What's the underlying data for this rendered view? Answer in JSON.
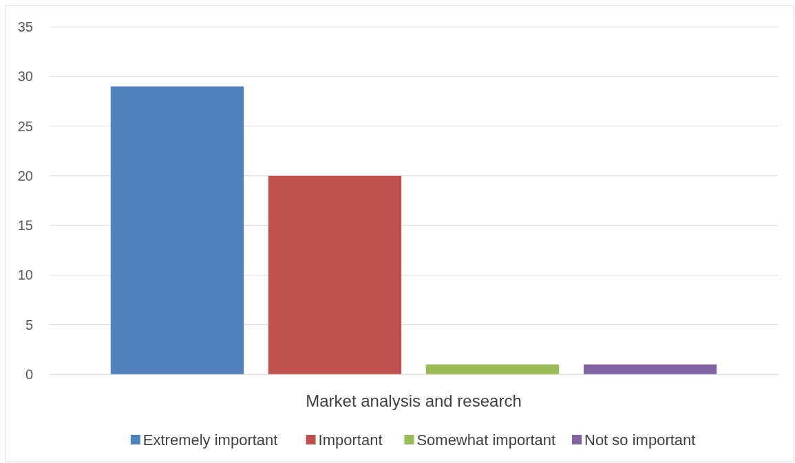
{
  "chart_data": {
    "type": "bar",
    "categories": [
      "Market analysis and research"
    ],
    "series": [
      {
        "name": "Extremely important",
        "color": "#4f81bd",
        "values": [
          29
        ]
      },
      {
        "name": "Important",
        "color": "#c0504d",
        "values": [
          20
        ]
      },
      {
        "name": "Somewhat important",
        "color": "#9bbb59",
        "values": [
          1
        ]
      },
      {
        "name": "Not so important",
        "color": "#8064a2",
        "values": [
          1
        ]
      }
    ],
    "ylim": [
      0,
      35
    ],
    "yticks": [
      0,
      5,
      10,
      15,
      20,
      25,
      30,
      35
    ],
    "grid": "y",
    "legend": "bottom"
  }
}
